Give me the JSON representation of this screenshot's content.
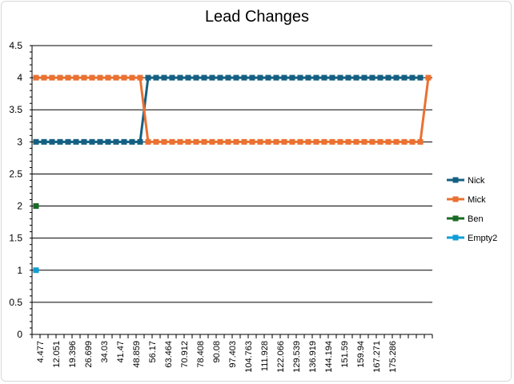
{
  "chart_data": {
    "type": "line",
    "title": "Lead Changes",
    "xlabel": "",
    "ylabel": "",
    "ylim": [
      0,
      4.5
    ],
    "ystep": 0.5,
    "grid": "horizontal",
    "legend_position": "right",
    "x_tick_labels": [
      "4.477",
      "12.051",
      "19.396",
      "26.699",
      "34.03",
      "41.47",
      "48.859",
      "56.17",
      "63.464",
      "70.912",
      "78.408",
      "90.08",
      "97.403",
      "104.763",
      "111.928",
      "122.066",
      "129.539",
      "136.919",
      "144.194",
      "151.59",
      "159.94",
      "167.271",
      "175.286"
    ],
    "n_points": 50,
    "series": [
      {
        "name": "Nick",
        "color": "#156082",
        "values": [
          3,
          3,
          3,
          3,
          3,
          3,
          3,
          3,
          3,
          3,
          3,
          3,
          3,
          3,
          4,
          4,
          4,
          4,
          4,
          4,
          4,
          4,
          4,
          4,
          4,
          4,
          4,
          4,
          4,
          4,
          4,
          4,
          4,
          4,
          4,
          4,
          4,
          4,
          4,
          4,
          4,
          4,
          4,
          4,
          4,
          4,
          4,
          4,
          4,
          null
        ]
      },
      {
        "name": "Mick",
        "color": "#E97132",
        "values": [
          4,
          4,
          4,
          4,
          4,
          4,
          4,
          4,
          4,
          4,
          4,
          4,
          4,
          4,
          3,
          3,
          3,
          3,
          3,
          3,
          3,
          3,
          3,
          3,
          3,
          3,
          3,
          3,
          3,
          3,
          3,
          3,
          3,
          3,
          3,
          3,
          3,
          3,
          3,
          3,
          3,
          3,
          3,
          3,
          3,
          3,
          3,
          3,
          3,
          4
        ]
      },
      {
        "name": "Ben",
        "color": "#196B24",
        "values": [
          2,
          null,
          null,
          null,
          null,
          null,
          null,
          null,
          null,
          null,
          null,
          null,
          null,
          null,
          null,
          null,
          null,
          null,
          null,
          null,
          null,
          null,
          null,
          null,
          null,
          null,
          null,
          null,
          null,
          null,
          null,
          null,
          null,
          null,
          null,
          null,
          null,
          null,
          null,
          null,
          null,
          null,
          null,
          null,
          null,
          null,
          null,
          null,
          null,
          null
        ]
      },
      {
        "name": "Empty2",
        "color": "#0F9ED5",
        "values": [
          1,
          null,
          null,
          null,
          null,
          null,
          null,
          null,
          null,
          null,
          null,
          null,
          null,
          null,
          null,
          null,
          null,
          null,
          null,
          null,
          null,
          null,
          null,
          null,
          null,
          null,
          null,
          null,
          null,
          null,
          null,
          null,
          null,
          null,
          null,
          null,
          null,
          null,
          null,
          null,
          null,
          null,
          null,
          null,
          null,
          null,
          null,
          null,
          null,
          null
        ]
      }
    ]
  }
}
